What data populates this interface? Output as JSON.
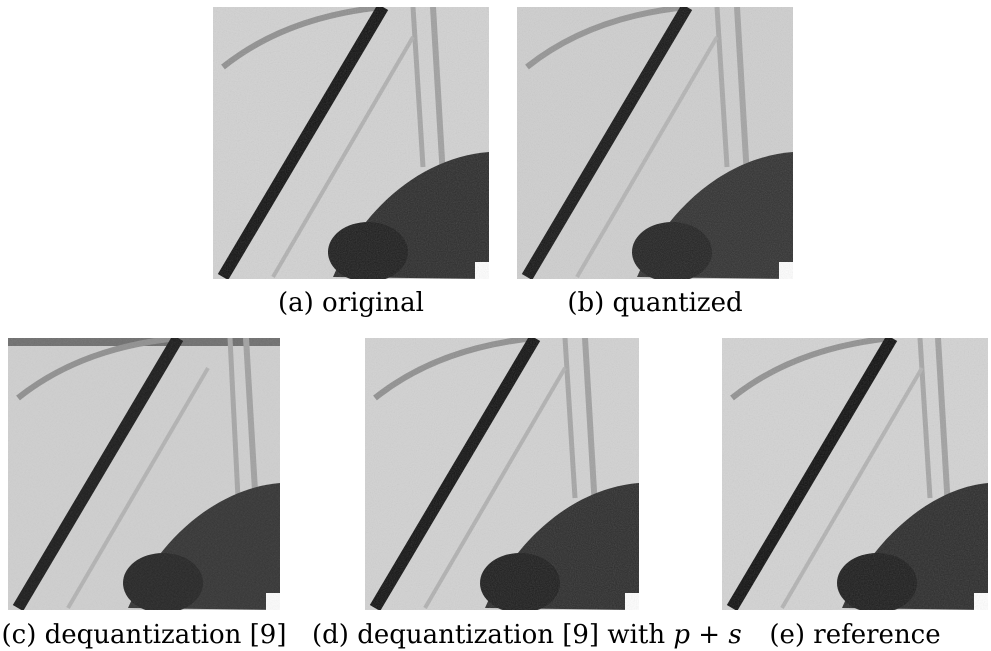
{
  "figure": {
    "panels": [
      {
        "id": "a",
        "caption": "(a) original"
      },
      {
        "id": "b",
        "caption": "(b) quantized"
      },
      {
        "id": "c",
        "caption": "(c) dequantization [9]"
      },
      {
        "id": "d",
        "caption_prefix": "(d) dequantization [9] with ",
        "caption_math": "p + s"
      },
      {
        "id": "e",
        "caption": "(e) reference"
      }
    ]
  },
  "colors": {
    "background": "#d2d2d2",
    "stroke_dark": "#111111",
    "blob": "#2a2a2a",
    "faint_line": "#9a9a9a"
  }
}
